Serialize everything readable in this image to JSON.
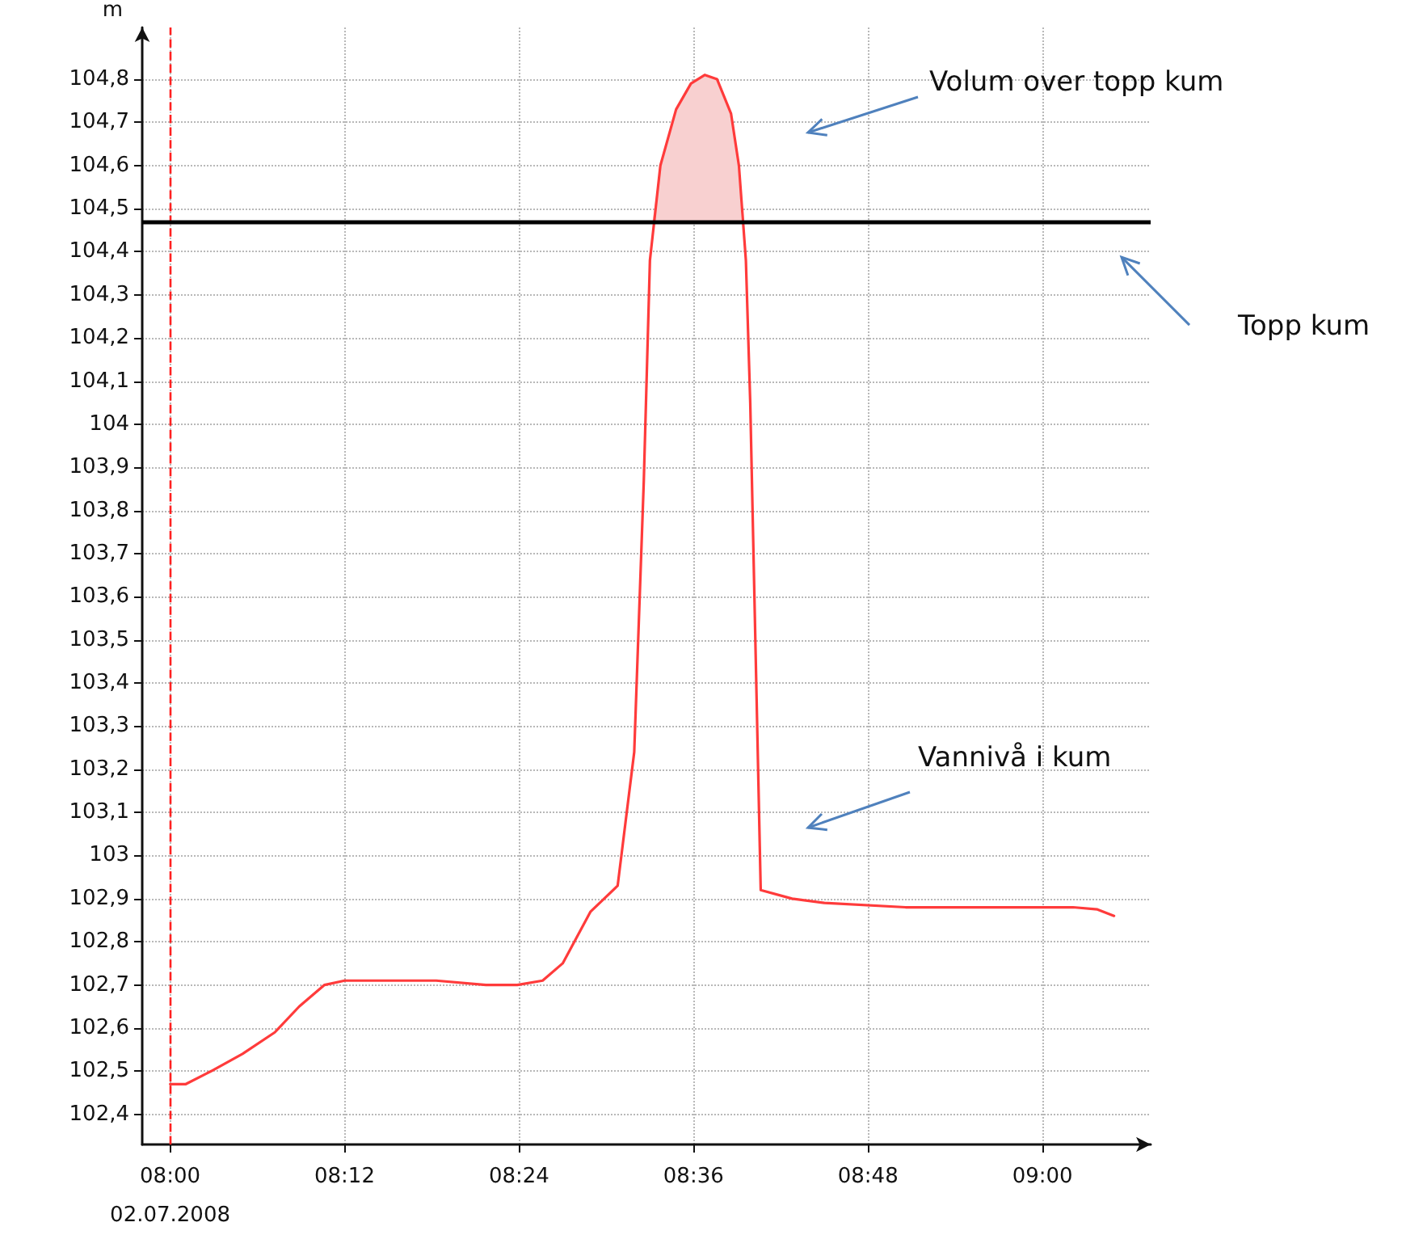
{
  "chart_data": {
    "type": "line",
    "ylabel": "m",
    "grid": true,
    "marker": "none",
    "line_style": "solid",
    "xlim": [
      7.968,
      9.124
    ],
    "ylim": [
      102.33,
      104.92
    ],
    "xticks": [
      {
        "value": 8,
        "label": "08:00\n02.07.2008"
      },
      {
        "value": 8.2,
        "label": "08:12"
      },
      {
        "value": 8.4,
        "label": "08:24"
      },
      {
        "value": 8.6,
        "label": "08:36"
      },
      {
        "value": 8.8,
        "label": "08:48"
      },
      {
        "value": 9,
        "label": "09:00"
      }
    ],
    "yticks": [
      {
        "value": 102.4,
        "label": "102,4"
      },
      {
        "value": 102.5,
        "label": "102,5"
      },
      {
        "value": 102.6,
        "label": "102,6"
      },
      {
        "value": 102.7,
        "label": "102,7"
      },
      {
        "value": 102.8,
        "label": "102,8"
      },
      {
        "value": 102.9,
        "label": "102,9"
      },
      103,
      {
        "value": 103.1,
        "label": "103,1"
      },
      {
        "value": 103.2,
        "label": "103,2"
      },
      {
        "value": 103.3,
        "label": "103,3"
      },
      {
        "value": 103.4,
        "label": "103,4"
      },
      {
        "value": 103.5,
        "label": "103,5"
      },
      {
        "value": 103.6,
        "label": "103,6"
      },
      {
        "value": 103.7,
        "label": "103,7"
      },
      {
        "value": 103.8,
        "label": "103,8"
      },
      {
        "value": 103.9,
        "label": "103,9"
      },
      104,
      {
        "value": 104.1,
        "label": "104,1"
      },
      {
        "value": 104.2,
        "label": "104,2"
      },
      {
        "value": 104.3,
        "label": "104,3"
      },
      {
        "value": 104.4,
        "label": "104,4"
      },
      {
        "value": 104.5,
        "label": "104,5"
      },
      {
        "value": 104.6,
        "label": "104,6"
      },
      {
        "value": 104.7,
        "label": "104,7"
      },
      {
        "value": 104.8,
        "label": "104,8"
      }
    ],
    "series": [
      {
        "color": "#ff3b3b",
        "x": [
          8.0,
          8.018,
          8.047,
          8.083,
          8.12,
          8.148,
          8.177,
          8.2,
          8.25,
          8.305,
          8.362,
          8.398,
          8.427,
          8.45,
          8.482,
          8.513,
          8.532,
          8.543,
          8.55,
          8.562,
          8.58,
          8.597,
          8.613,
          8.627,
          8.643,
          8.652,
          8.66,
          8.665,
          8.677,
          8.713,
          8.75,
          8.843,
          8.953,
          9.035,
          9.063,
          9.082
        ],
        "values": [
          102.47,
          102.47,
          102.5,
          102.54,
          102.59,
          102.65,
          102.7,
          102.71,
          102.71,
          102.71,
          102.7,
          102.7,
          102.71,
          102.75,
          102.87,
          102.93,
          103.24,
          103.87,
          104.38,
          104.6,
          104.73,
          104.79,
          104.81,
          104.8,
          104.72,
          104.6,
          104.38,
          104.05,
          102.92,
          102.9,
          102.89,
          102.88,
          102.88,
          102.88,
          102.875,
          102.86
        ]
      },
      {
        "type": "area",
        "color": "#f8d0d0",
        "x": [
          8.553,
          8.562,
          8.58,
          8.597,
          8.613,
          8.627,
          8.643,
          8.652,
          8.655
        ],
        "values": [
          104.47,
          104.6,
          104.73,
          104.79,
          104.81,
          104.8,
          104.72,
          104.6,
          104.47
        ]
      }
    ],
    "ref_lines": [
      {
        "axis": "x",
        "value": 8,
        "color": "#ff2020",
        "line_style": "dashed"
      },
      {
        "axis": "y",
        "value": 104.47,
        "label": "Topp kum",
        "color": "#000000",
        "line_style": "solid"
      }
    ],
    "annotations": [
      "Volum over topp kum",
      "Vannivå i kum"
    ]
  }
}
